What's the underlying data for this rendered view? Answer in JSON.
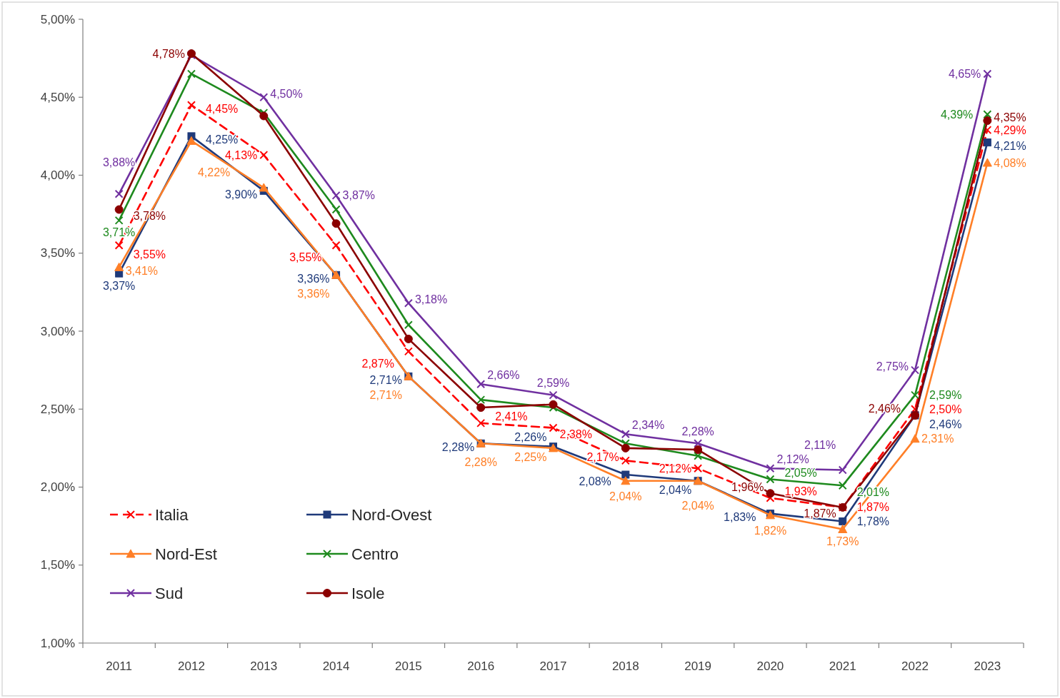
{
  "chart_data": {
    "type": "line",
    "categories": [
      "2011",
      "2012",
      "2013",
      "2014",
      "2015",
      "2016",
      "2017",
      "2018",
      "2019",
      "2020",
      "2021",
      "2022",
      "2023"
    ],
    "ylim": [
      1,
      5
    ],
    "yticks": [
      {
        "value": 1,
        "label": "1,00%"
      },
      {
        "value": 1.5,
        "label": "1,50%"
      },
      {
        "value": 2,
        "label": "2,00%"
      },
      {
        "value": 2.5,
        "label": "2,50%"
      },
      {
        "value": 3,
        "label": "3,00%"
      },
      {
        "value": 3.5,
        "label": "3,50%"
      },
      {
        "value": 4,
        "label": "4,00%"
      },
      {
        "value": 4.5,
        "label": "4,50%"
      },
      {
        "value": 5,
        "label": "5,00%"
      }
    ],
    "legend": "bottom left",
    "series": [
      {
        "name": "Italia",
        "color": "#ff0000",
        "marker": "cross",
        "line_style": "dashed",
        "values": [
          3.55,
          4.45,
          4.13,
          3.55,
          2.87,
          2.41,
          2.38,
          2.17,
          2.12,
          1.93,
          1.87,
          2.5,
          4.29
        ],
        "value_labels": [
          "3,55%",
          "4,45%",
          "4,13%",
          "3,55%",
          "2,87%",
          "2,41%",
          "2,38%",
          "2,17%",
          "2,12%",
          "1,93%",
          "1,87%",
          "2,50%",
          "4,29%"
        ]
      },
      {
        "name": "Nord-Ovest",
        "color": "#1f3a7a",
        "marker": "square",
        "line_style": "solid",
        "values": [
          3.37,
          4.25,
          3.9,
          3.36,
          2.71,
          2.28,
          2.26,
          2.08,
          2.04,
          1.83,
          1.78,
          2.46,
          4.21
        ],
        "value_labels": [
          "3,37%",
          "4,25%",
          "3,90%",
          "3,36%",
          "2,71%",
          "2,28%",
          "2,26%",
          "2,08%",
          "2,04%",
          "1,83%",
          "1,78%",
          "2,46%",
          "4,21%"
        ]
      },
      {
        "name": "Nord-Est",
        "color": "#ff7f27",
        "marker": "triangle",
        "line_style": "solid",
        "values": [
          3.41,
          4.22,
          3.92,
          3.36,
          2.71,
          2.28,
          2.25,
          2.04,
          2.04,
          1.82,
          1.73,
          2.31,
          4.08
        ],
        "value_labels": [
          "3,41%",
          "4,22%",
          null,
          "3,36%",
          "2,71%",
          "2,28%",
          "2,25%",
          "2,04%",
          "2,04%",
          "1,82%",
          "1,73%",
          "2,31%",
          "4,08%"
        ]
      },
      {
        "name": "Centro",
        "color": "#1e8a1e",
        "marker": "cross",
        "line_style": "solid",
        "values": [
          3.71,
          4.65,
          4.4,
          3.78,
          3.04,
          2.56,
          2.51,
          2.28,
          2.2,
          2.05,
          2.01,
          2.59,
          4.39
        ],
        "value_labels": [
          "3,71%",
          null,
          null,
          null,
          null,
          null,
          null,
          null,
          null,
          "2,05%",
          "2,01%",
          "2,59%",
          "4,39%"
        ]
      },
      {
        "name": "Sud",
        "color": "#7030a0",
        "marker": "cross",
        "line_style": "solid",
        "values": [
          3.88,
          4.77,
          4.5,
          3.87,
          3.18,
          2.66,
          2.59,
          2.34,
          2.28,
          2.12,
          2.11,
          2.75,
          4.65
        ],
        "value_labels": [
          "3,88%",
          null,
          "4,50%",
          "3,87%",
          "3,18%",
          "2,66%",
          "2,59%",
          "2,34%",
          "2,28%",
          "2,12%",
          "2,11%",
          "2,75%",
          "4,65%"
        ]
      },
      {
        "name": "Isole",
        "color": "#8b0000",
        "marker": "circle",
        "line_style": "solid",
        "values": [
          3.78,
          4.78,
          4.38,
          3.69,
          2.95,
          2.51,
          2.53,
          2.25,
          2.24,
          1.96,
          1.87,
          2.46,
          4.35
        ],
        "value_labels": [
          "3,78%",
          "4,78%",
          null,
          null,
          null,
          null,
          null,
          null,
          null,
          "1,96%",
          "1,87%",
          "2,46%",
          "4,35%"
        ]
      }
    ]
  }
}
